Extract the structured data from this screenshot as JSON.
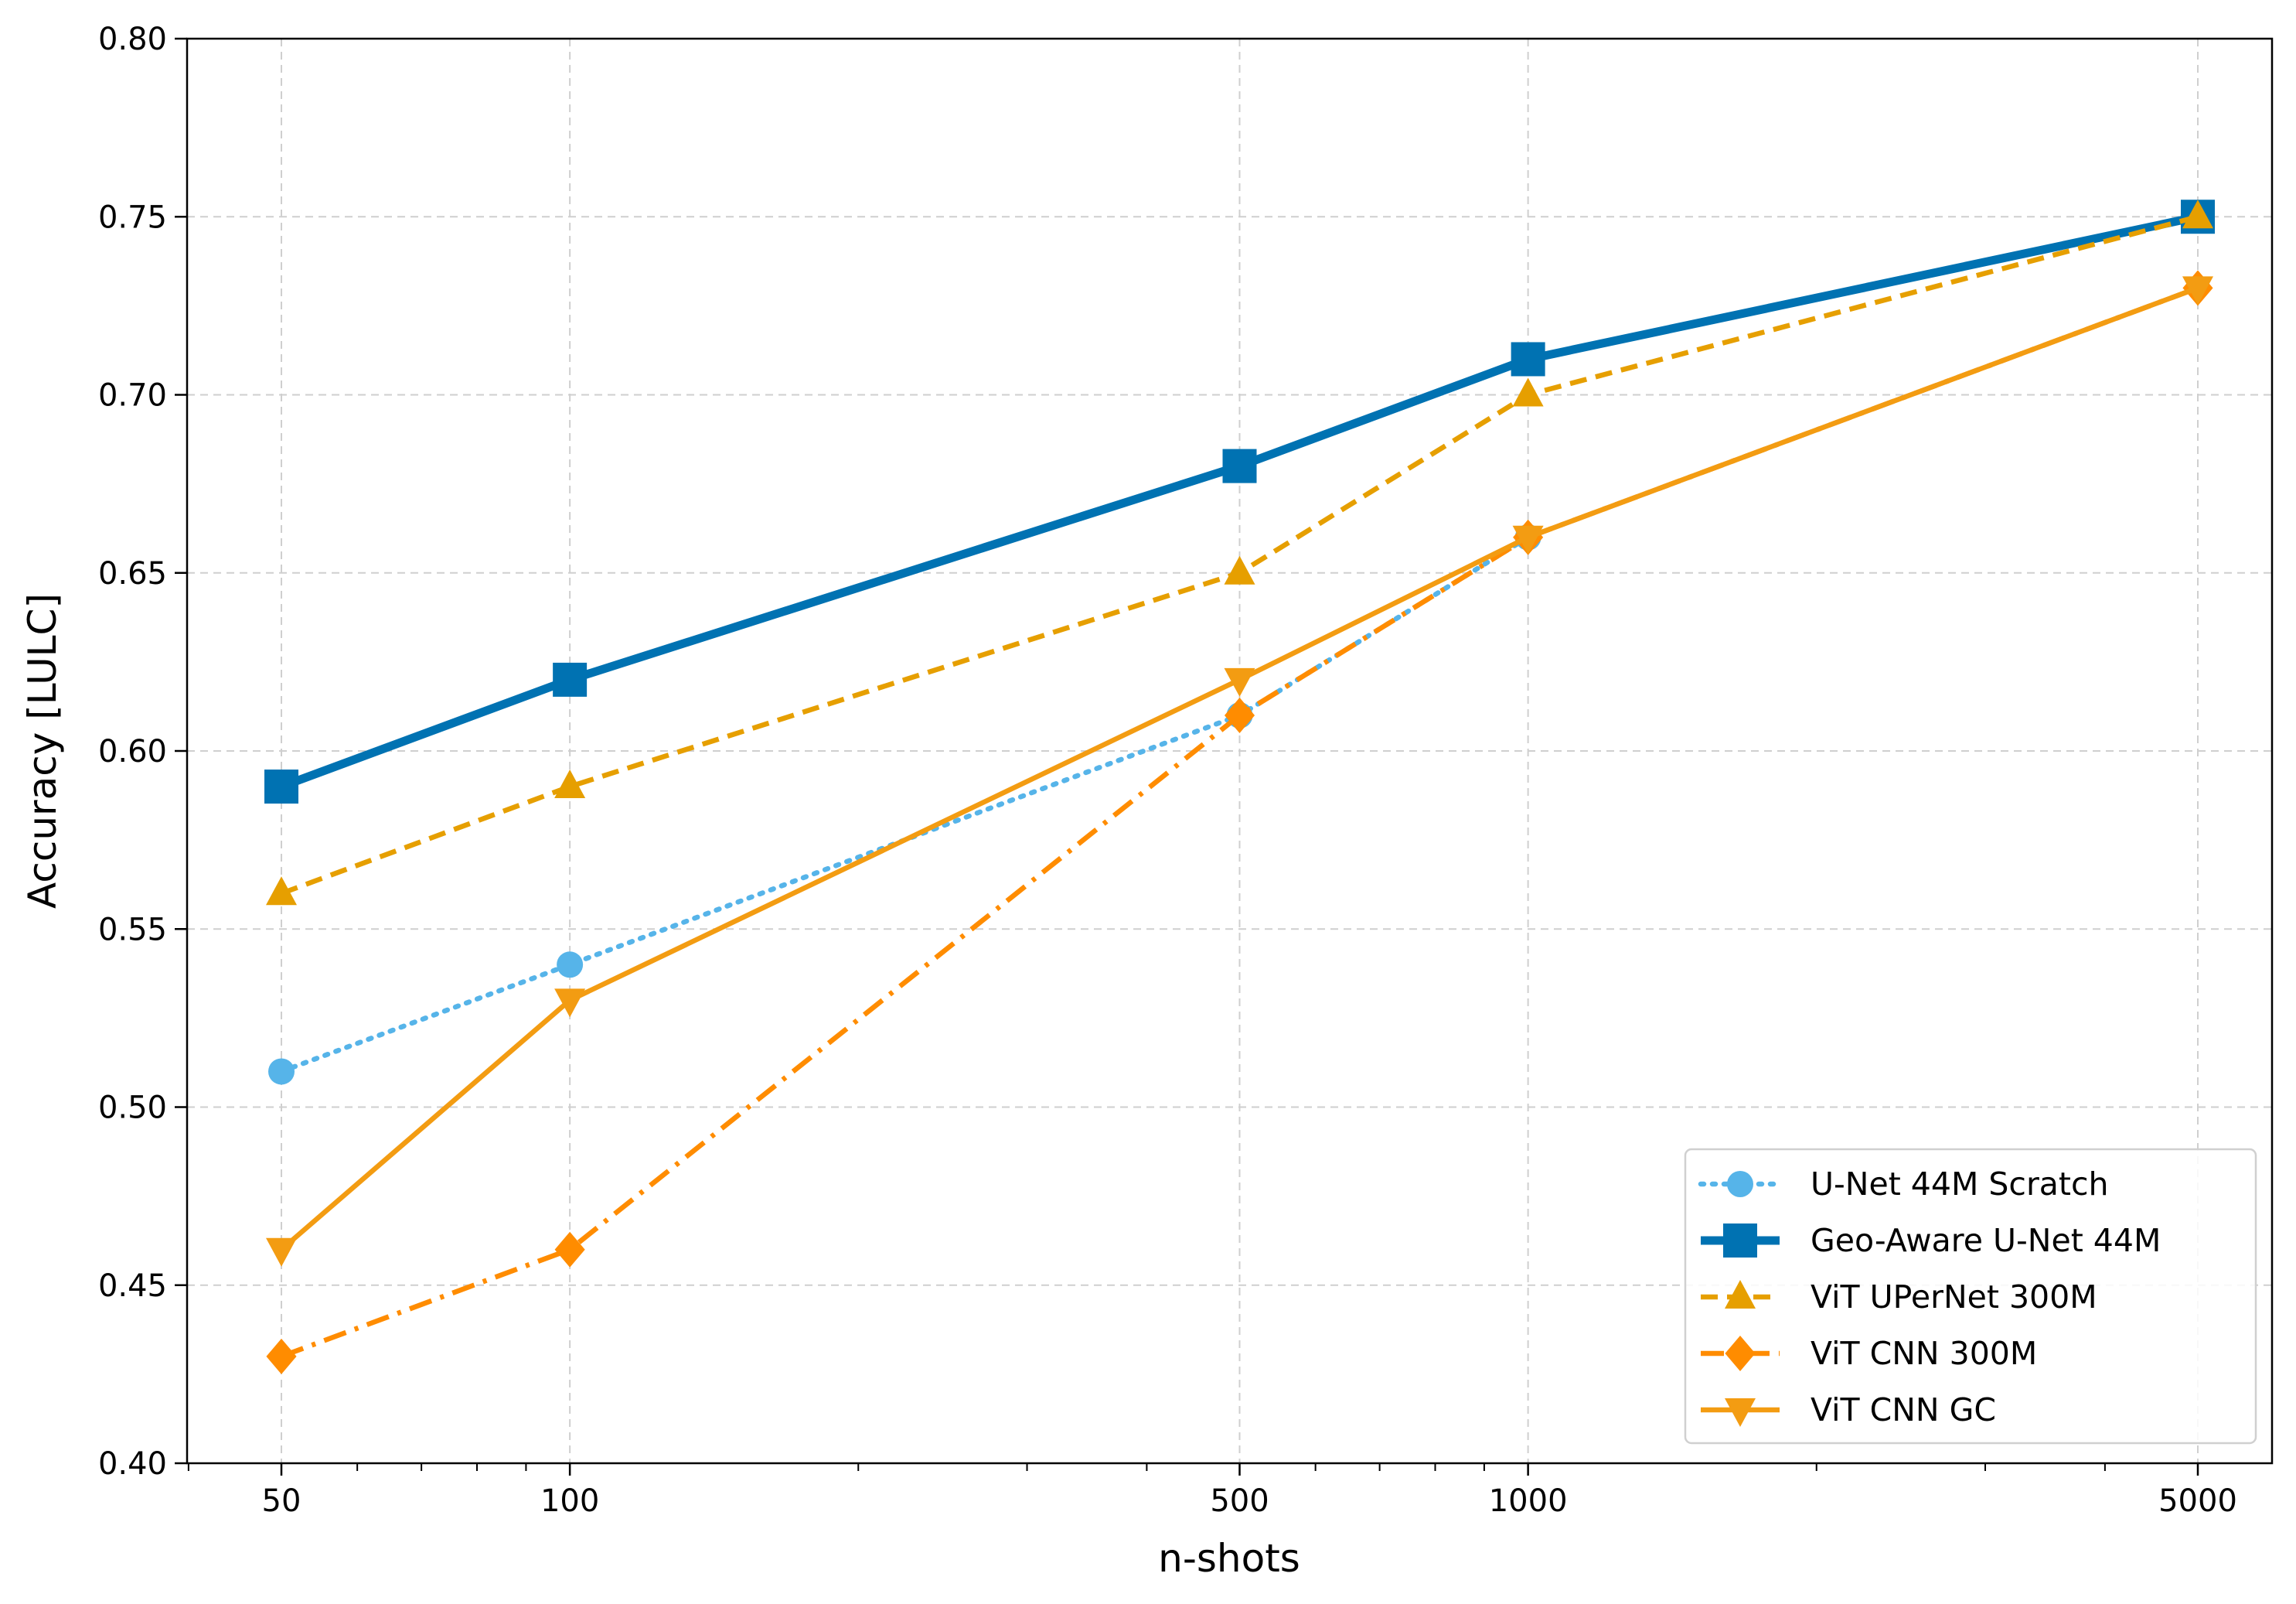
{
  "chart_data": {
    "type": "line",
    "title": "",
    "xlabel": "n-shots",
    "ylabel": "Accuracy [LULC]",
    "xscale": "log",
    "x": [
      50,
      100,
      500,
      1000,
      5000
    ],
    "xtick_labels": [
      "50",
      "100",
      "500",
      "1000",
      "5000"
    ],
    "ylim": [
      0.4,
      0.8
    ],
    "yticks": [
      0.4,
      0.45,
      0.5,
      0.55,
      0.6,
      0.65,
      0.7,
      0.75,
      0.8
    ],
    "ytick_labels": [
      "0.40",
      "0.45",
      "0.50",
      "0.55",
      "0.60",
      "0.65",
      "0.70",
      "0.75",
      "0.80"
    ],
    "grid": true,
    "legend_position": "lower-right",
    "series": [
      {
        "name": "U-Net 44M Scratch",
        "x": [
          50,
          100,
          500,
          1000
        ],
        "values": [
          0.51,
          0.54,
          0.61,
          0.66
        ],
        "color": "#56B4E9",
        "linestyle": "dotted",
        "marker": "circle"
      },
      {
        "name": "Geo-Aware U-Net 44M",
        "x": [
          50,
          100,
          500,
          1000,
          5000
        ],
        "values": [
          0.59,
          0.62,
          0.68,
          0.71,
          0.75
        ],
        "color": "#0072B2",
        "linestyle": "solid-thick",
        "marker": "square"
      },
      {
        "name": "ViT UPerNet 300M",
        "x": [
          50,
          100,
          500,
          1000,
          5000
        ],
        "values": [
          0.56,
          0.59,
          0.65,
          0.7,
          0.75
        ],
        "color": "#E69F00",
        "linestyle": "dashed",
        "marker": "triangle-up"
      },
      {
        "name": "ViT CNN 300M",
        "x": [
          50,
          100,
          500,
          1000,
          5000
        ],
        "values": [
          0.43,
          0.46,
          0.61,
          0.66,
          0.73
        ],
        "color": "#FF8C00",
        "linestyle": "dashdot",
        "marker": "diamond"
      },
      {
        "name": "ViT CNN GC",
        "x": [
          50,
          100,
          500,
          1000,
          5000
        ],
        "values": [
          0.46,
          0.53,
          0.62,
          0.66,
          0.73
        ],
        "color": "#F39C12",
        "linestyle": "solid",
        "marker": "triangle-down"
      }
    ]
  }
}
